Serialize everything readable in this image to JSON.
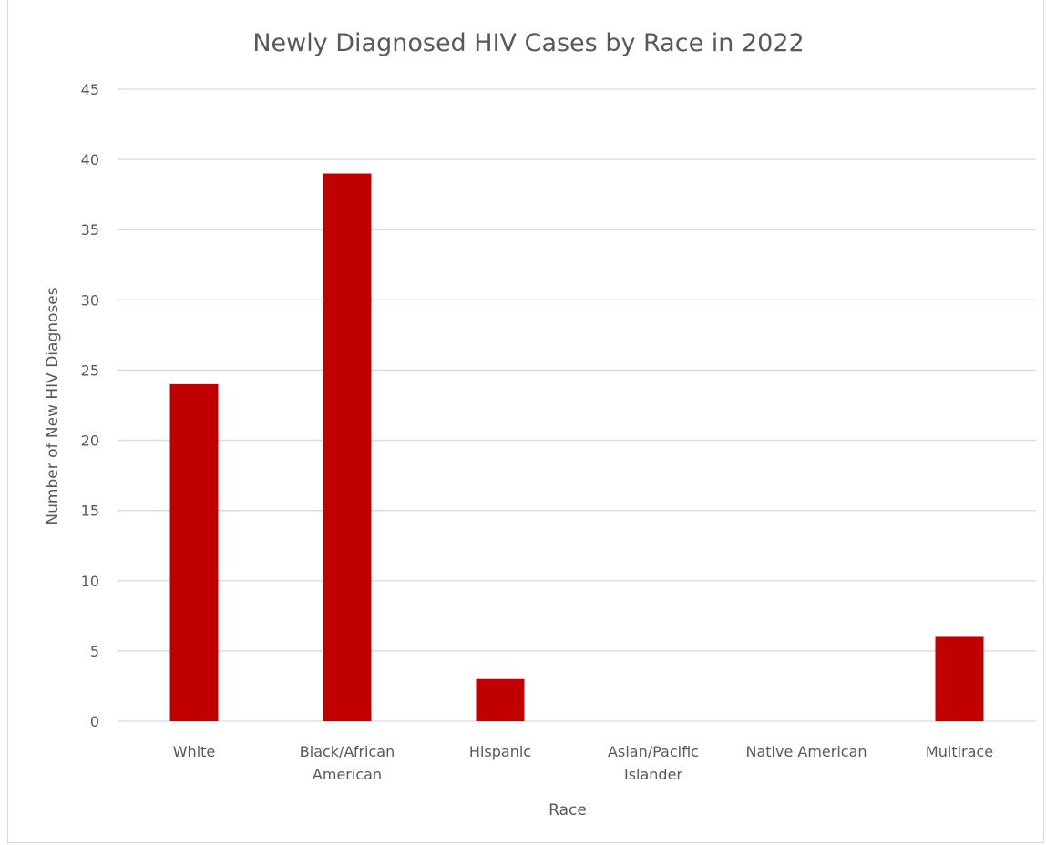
{
  "chart_data": {
    "type": "bar",
    "title": "Newly Diagnosed HIV Cases by Race in 2022",
    "xlabel": "Race",
    "ylabel": "Number of New HIV Diagnoses",
    "categories": [
      [
        "White"
      ],
      [
        "Black/African",
        "American"
      ],
      [
        "Hispanic"
      ],
      [
        "Asian/Pacific",
        "Islander"
      ],
      [
        "Native American"
      ],
      [
        "Multirace"
      ]
    ],
    "values": [
      24,
      39,
      3,
      0,
      0,
      6
    ],
    "ylim": [
      0,
      45
    ],
    "yticks": [
      0,
      5,
      10,
      15,
      20,
      25,
      30,
      35,
      40,
      45
    ],
    "grid": true,
    "legend": "none",
    "colors": {
      "bar": "#c00000",
      "grid": "#d9d9d9",
      "text": "#595959",
      "axis": "#d9d9d9"
    }
  }
}
